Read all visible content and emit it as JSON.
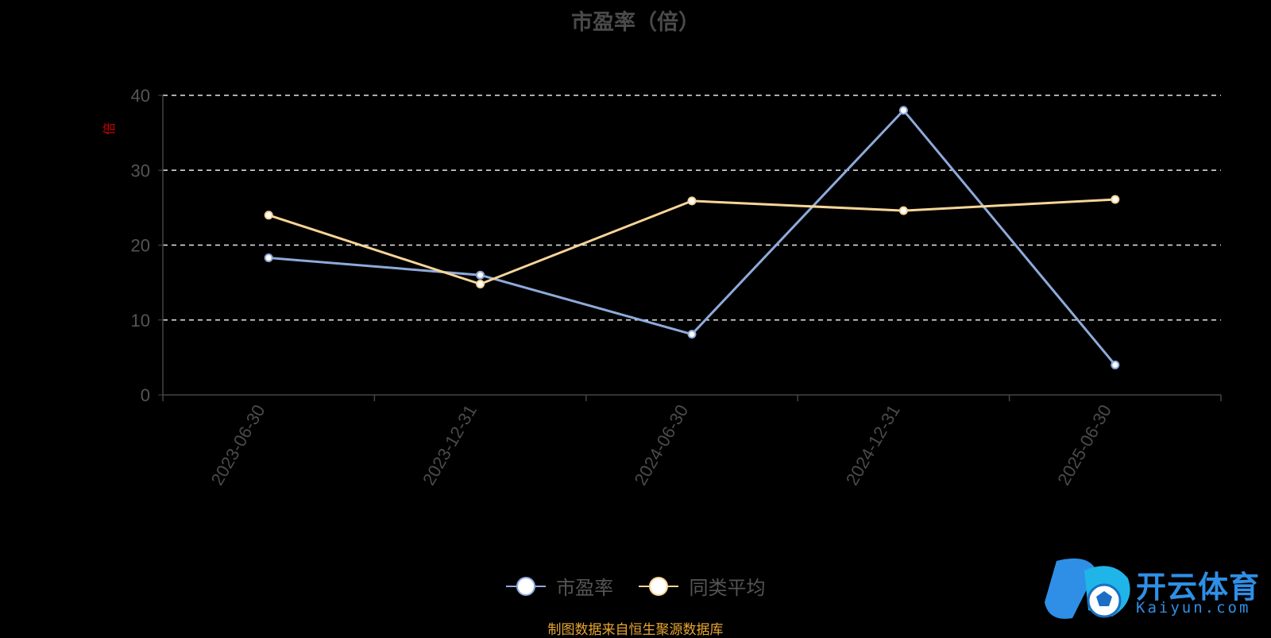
{
  "chart_data": {
    "type": "line",
    "title": "市盈率（倍）",
    "ylabel": "倍",
    "categories": [
      "2023-06-30",
      "2023-12-31",
      "2024-06-30",
      "2024-12-31",
      "2025-06-30"
    ],
    "ylim": [
      0,
      40
    ],
    "yticks": [
      0,
      10,
      20,
      30,
      40
    ],
    "grid": true,
    "legend_position": "bottom",
    "series": [
      {
        "name": "市盈率",
        "color": "#8eaadb",
        "values": [
          18.3,
          16.0,
          8.1,
          38.0,
          4.0
        ]
      },
      {
        "name": "同类平均",
        "color": "#f8d598",
        "values": [
          24.0,
          14.8,
          25.9,
          24.6,
          26.1
        ]
      }
    ]
  },
  "footer": {
    "source": "制图数据来自恒生聚源数据库"
  },
  "logo": {
    "cn_text": "开云体育",
    "en_text": "Kaiyun.com",
    "color": "#2f8fe6"
  }
}
